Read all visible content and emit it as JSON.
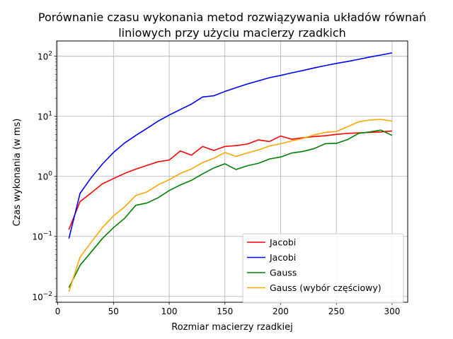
{
  "chart_data": {
    "type": "line",
    "title": [
      "Porównanie czasu wykonania metod rozwiązywania układów równań",
      "liniowych przy użyciu macierzy rzadkich"
    ],
    "xlabel": "Rozmiar macierzy rzadkiej",
    "ylabel": "Czas wykonania (w ms)",
    "xlim": [
      -1,
      314
    ],
    "ylim": [
      0.008,
      180
    ],
    "yscale": "log",
    "grid": true,
    "legend_position": "lower right",
    "x_ticks": [
      0,
      50,
      100,
      150,
      200,
      250,
      300
    ],
    "y_ticks": [
      {
        "value": 0.01,
        "base": "10",
        "exp": "−2"
      },
      {
        "value": 0.1,
        "base": "10",
        "exp": "−1"
      },
      {
        "value": 1,
        "base": "10",
        "exp": "0"
      },
      {
        "value": 10,
        "base": "10",
        "exp": "1"
      },
      {
        "value": 100,
        "base": "10",
        "exp": "2"
      }
    ],
    "x": [
      10,
      20,
      30,
      40,
      50,
      60,
      70,
      80,
      90,
      100,
      110,
      120,
      130,
      140,
      150,
      160,
      170,
      180,
      190,
      200,
      210,
      220,
      230,
      240,
      250,
      260,
      270,
      280,
      290,
      300
    ],
    "series": [
      {
        "name": "Jacobi",
        "color": "#ff0000",
        "values": [
          0.13,
          0.38,
          0.53,
          0.75,
          0.92,
          1.12,
          1.32,
          1.52,
          1.75,
          1.87,
          2.65,
          2.25,
          3.15,
          2.7,
          3.15,
          3.25,
          3.45,
          4.05,
          3.8,
          4.7,
          4.15,
          4.4,
          4.6,
          4.75,
          5.0,
          5.2,
          5.3,
          5.4,
          5.5,
          5.7
        ]
      },
      {
        "name": "Jacobi",
        "color": "#0000ff",
        "values": [
          0.092,
          0.52,
          0.95,
          1.6,
          2.5,
          3.6,
          4.8,
          6.3,
          8.3,
          10.5,
          13.0,
          16.0,
          21.0,
          22.0,
          26.0,
          30.0,
          34.5,
          39.0,
          44.0,
          48.0,
          53.0,
          58.0,
          64.0,
          70.0,
          76.0,
          82.0,
          89.0,
          97.0,
          105.0,
          114.0
        ]
      },
      {
        "name": "Gauss",
        "color": "#008000",
        "values": [
          0.014,
          0.033,
          0.055,
          0.092,
          0.14,
          0.2,
          0.33,
          0.36,
          0.44,
          0.58,
          0.72,
          0.86,
          1.1,
          1.38,
          1.62,
          1.3,
          1.5,
          1.65,
          1.95,
          2.1,
          2.45,
          2.6,
          2.9,
          3.5,
          3.55,
          4.1,
          5.2,
          5.5,
          5.9,
          4.8
        ]
      },
      {
        "name": "Gauss (wybór częściowy)",
        "color": "#ffa500",
        "values": [
          0.012,
          0.045,
          0.08,
          0.14,
          0.22,
          0.31,
          0.48,
          0.55,
          0.72,
          0.88,
          1.12,
          1.33,
          1.7,
          2.0,
          2.5,
          2.15,
          2.45,
          2.75,
          3.2,
          3.5,
          3.9,
          4.3,
          4.9,
          5.4,
          5.6,
          6.7,
          8.1,
          8.7,
          8.9,
          8.3
        ]
      }
    ]
  }
}
